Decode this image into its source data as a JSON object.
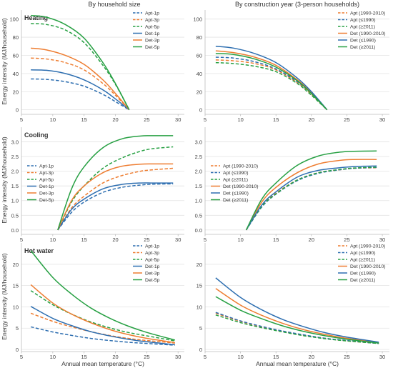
{
  "figure": {
    "col_titles": [
      "By household size",
      "By construction year (3-person households)"
    ],
    "ylabel": "Energy intensity (MJ/household)",
    "xlabel": "Annual mean temperature (°C)",
    "row_titles": [
      "Heating",
      "Cooling",
      "Hot water"
    ]
  },
  "colors": {
    "blue": "#2d6eb0",
    "orange": "#ee7d31",
    "green": "#27a043",
    "grid": "#e3e3e3",
    "axis": "#bdbdbd"
  },
  "chart_data": [
    {
      "type": "line",
      "title": "Heating",
      "column": "By household size",
      "xlim": [
        5,
        31
      ],
      "ylim": [
        -5,
        110
      ],
      "xticks": [
        5,
        10,
        15,
        20,
        25,
        30
      ],
      "yticks": [
        0,
        20,
        40,
        60,
        80,
        100
      ],
      "legend": "top-right",
      "series": [
        {
          "name": "Apt-1p",
          "color": "#2d6eb0",
          "dash": true,
          "x": [
            6.5,
            9,
            12,
            15,
            18,
            20,
            22.2
          ],
          "y": [
            34,
            33.5,
            31,
            26,
            17,
            9,
            0
          ]
        },
        {
          "name": "Apt-3p",
          "color": "#ee7d31",
          "dash": true,
          "x": [
            6.5,
            9,
            12,
            15,
            18,
            20,
            22.2
          ],
          "y": [
            57,
            56,
            52,
            44,
            29,
            16,
            0
          ]
        },
        {
          "name": "Apt-5p",
          "color": "#27a043",
          "dash": true,
          "x": [
            6.5,
            9,
            12,
            15,
            18,
            20,
            22.2
          ],
          "y": [
            95,
            94,
            88,
            74,
            49,
            28,
            0
          ]
        },
        {
          "name": "Det-1p",
          "color": "#2d6eb0",
          "dash": false,
          "x": [
            6.5,
            9,
            12,
            15,
            18,
            20,
            22.2
          ],
          "y": [
            44,
            43.5,
            40,
            33,
            22,
            12,
            0
          ]
        },
        {
          "name": "Det-3p",
          "color": "#ee7d31",
          "dash": false,
          "x": [
            6.5,
            9,
            12,
            15,
            18,
            20,
            22.2
          ],
          "y": [
            68,
            66,
            60,
            50,
            33,
            18,
            0
          ]
        },
        {
          "name": "Det-5p",
          "color": "#27a043",
          "dash": false,
          "x": [
            6.5,
            9,
            12,
            15,
            18,
            20,
            22.2
          ],
          "y": [
            104,
            102,
            94,
            79,
            52,
            29,
            0
          ]
        }
      ]
    },
    {
      "type": "line",
      "column": "By construction year (3-person households)",
      "xlim": [
        5,
        31
      ],
      "ylim": [
        -5,
        110
      ],
      "xticks": [
        5,
        10,
        15,
        20,
        25,
        30
      ],
      "yticks": [
        0,
        20,
        40,
        60,
        80,
        100
      ],
      "legend": "top-right",
      "series": [
        {
          "name": "Apt (1990-2010)",
          "color": "#ee7d31",
          "dash": true,
          "x": [
            6.5,
            9,
            12,
            15,
            18,
            20,
            22.2
          ],
          "y": [
            55,
            54,
            51,
            44,
            30,
            17,
            0
          ]
        },
        {
          "name": "Apt (≤1990)",
          "color": "#2d6eb0",
          "dash": true,
          "x": [
            6.5,
            9,
            12,
            15,
            18,
            20,
            22.2
          ],
          "y": [
            58,
            57,
            53,
            45,
            31,
            18,
            0
          ]
        },
        {
          "name": "Apt (≥2011)",
          "color": "#27a043",
          "dash": true,
          "x": [
            6.5,
            9,
            12,
            15,
            18,
            20,
            22.2
          ],
          "y": [
            52,
            51,
            48,
            42,
            29,
            16,
            0
          ]
        },
        {
          "name": "Det (1990-2010)",
          "color": "#ee7d31",
          "dash": false,
          "x": [
            6.5,
            9,
            12,
            15,
            18,
            20,
            22.2
          ],
          "y": [
            65,
            63,
            58,
            49,
            33,
            19,
            0
          ]
        },
        {
          "name": "Det (≤1990)",
          "color": "#2d6eb0",
          "dash": false,
          "x": [
            6.5,
            9,
            12,
            15,
            18,
            20,
            22.2
          ],
          "y": [
            70,
            68,
            62,
            52,
            35,
            20,
            0
          ]
        },
        {
          "name": "Det (≥2011)",
          "color": "#27a043",
          "dash": false,
          "x": [
            6.5,
            9,
            12,
            15,
            18,
            20,
            22.2
          ],
          "y": [
            62,
            61,
            56,
            47,
            32,
            18,
            0
          ]
        }
      ]
    },
    {
      "type": "line",
      "title": "Cooling",
      "column": "By household size",
      "xlim": [
        5,
        31
      ],
      "ylim": [
        -0.15,
        3.5
      ],
      "xticks": [
        5,
        10,
        15,
        20,
        25,
        30
      ],
      "yticks": [
        0.0,
        0.5,
        1.0,
        1.5,
        2.0,
        2.5,
        3.0
      ],
      "legend": "left",
      "series": [
        {
          "name": "Apt-1p",
          "color": "#2d6eb0",
          "dash": true,
          "x": [
            10.8,
            13,
            15,
            18,
            21,
            24,
            26,
            29.2
          ],
          "y": [
            0,
            0.6,
            0.95,
            1.28,
            1.45,
            1.53,
            1.56,
            1.57
          ]
        },
        {
          "name": "Apt-3p",
          "color": "#ee7d31",
          "dash": true,
          "x": [
            10.8,
            13,
            15,
            18,
            21,
            24,
            26,
            29.2
          ],
          "y": [
            0,
            0.75,
            1.15,
            1.6,
            1.85,
            2.0,
            2.05,
            2.1
          ]
        },
        {
          "name": "Apt-5p",
          "color": "#27a043",
          "dash": true,
          "x": [
            10.8,
            13,
            15,
            18,
            21,
            24,
            26,
            29.2
          ],
          "y": [
            0,
            0.95,
            1.5,
            2.1,
            2.45,
            2.68,
            2.77,
            2.83
          ]
        },
        {
          "name": "Det-1p",
          "color": "#2d6eb0",
          "dash": false,
          "x": [
            10.8,
            13,
            15,
            18,
            21,
            24,
            26,
            29.2
          ],
          "y": [
            0,
            0.7,
            1.05,
            1.4,
            1.55,
            1.6,
            1.6,
            1.6
          ]
        },
        {
          "name": "Det-3p",
          "color": "#ee7d31",
          "dash": false,
          "x": [
            10.8,
            13,
            15,
            18,
            21,
            24,
            26,
            29.2
          ],
          "y": [
            0,
            1.0,
            1.5,
            1.95,
            2.17,
            2.24,
            2.25,
            2.25
          ]
        },
        {
          "name": "Det-5p",
          "color": "#27a043",
          "dash": false,
          "x": [
            10.8,
            13,
            15,
            18,
            21,
            24,
            26,
            29.2
          ],
          "y": [
            0,
            1.4,
            2.15,
            2.8,
            3.1,
            3.2,
            3.21,
            3.21
          ]
        }
      ]
    },
    {
      "type": "line",
      "column": "By construction year (3-person households)",
      "xlim": [
        5,
        31
      ],
      "ylim": [
        -0.15,
        3.5
      ],
      "xticks": [
        5,
        10,
        15,
        20,
        25,
        30
      ],
      "yticks": [
        0.0,
        0.5,
        1.0,
        1.5,
        2.0,
        2.5,
        3.0
      ],
      "legend": "left",
      "series": [
        {
          "name": "Apt (1990-2010)",
          "color": "#ee7d31",
          "dash": true,
          "x": [
            10.8,
            13,
            15,
            18,
            21,
            24,
            26,
            29.2
          ],
          "y": [
            0,
            0.8,
            1.25,
            1.7,
            1.95,
            2.05,
            2.1,
            2.12
          ]
        },
        {
          "name": "Apt (≤1990)",
          "color": "#2d6eb0",
          "dash": true,
          "x": [
            10.8,
            13,
            15,
            18,
            21,
            24,
            26,
            29.2
          ],
          "y": [
            0,
            0.78,
            1.22,
            1.68,
            1.93,
            2.05,
            2.1,
            2.13
          ]
        },
        {
          "name": "Apt (≥2011)",
          "color": "#27a043",
          "dash": true,
          "x": [
            10.8,
            13,
            15,
            18,
            21,
            24,
            26,
            29.2
          ],
          "y": [
            0,
            0.8,
            1.23,
            1.7,
            1.95,
            2.06,
            2.11,
            2.14
          ]
        },
        {
          "name": "Det (1990-2010)",
          "color": "#ee7d31",
          "dash": false,
          "x": [
            10.8,
            13,
            15,
            18,
            21,
            24,
            26,
            29.2
          ],
          "y": [
            0,
            0.95,
            1.45,
            1.95,
            2.25,
            2.37,
            2.4,
            2.4
          ]
        },
        {
          "name": "Det (≤1990)",
          "color": "#2d6eb0",
          "dash": false,
          "x": [
            10.8,
            13,
            15,
            18,
            21,
            24,
            26,
            29.2
          ],
          "y": [
            0,
            0.85,
            1.3,
            1.8,
            2.03,
            2.12,
            2.16,
            2.18
          ]
        },
        {
          "name": "Det (≥2011)",
          "color": "#27a043",
          "dash": false,
          "x": [
            10.8,
            13,
            15,
            18,
            21,
            24,
            26,
            29.2
          ],
          "y": [
            0,
            1.05,
            1.6,
            2.2,
            2.52,
            2.65,
            2.68,
            2.69
          ]
        }
      ]
    },
    {
      "type": "line",
      "title": "Hot water",
      "column": "By household size",
      "xlim": [
        5,
        31
      ],
      "ylim": [
        -0.5,
        25
      ],
      "xticks": [
        5,
        10,
        15,
        20,
        25,
        30
      ],
      "yticks": [
        0,
        5,
        10,
        15,
        20
      ],
      "xlabel": "Annual mean temperature (°C)",
      "legend": "top-right",
      "series": [
        {
          "name": "Apt-1p",
          "color": "#2d6eb0",
          "dash": true,
          "x": [
            6.5,
            10,
            13,
            16,
            19,
            22,
            25,
            29.5
          ],
          "y": [
            5.3,
            4.1,
            3.3,
            2.6,
            2.1,
            1.7,
            1.4,
            1.0
          ]
        },
        {
          "name": "Apt-3p",
          "color": "#ee7d31",
          "dash": true,
          "x": [
            6.5,
            10,
            13,
            16,
            19,
            22,
            25,
            29.5
          ],
          "y": [
            8.5,
            6.6,
            5.3,
            4.2,
            3.3,
            2.6,
            2.1,
            1.5
          ]
        },
        {
          "name": "Apt-5p",
          "color": "#27a043",
          "dash": true,
          "x": [
            6.5,
            10,
            13,
            16,
            19,
            22,
            25,
            29.5
          ],
          "y": [
            13.8,
            10.5,
            8.3,
            6.5,
            5.1,
            4.0,
            3.2,
            2.0
          ]
        },
        {
          "name": "Det-1p",
          "color": "#2d6eb0",
          "dash": false,
          "x": [
            6.5,
            10,
            13,
            16,
            19,
            22,
            25,
            29.5
          ],
          "y": [
            10.1,
            7.3,
            5.6,
            4.2,
            3.2,
            2.4,
            1.8,
            1.1
          ]
        },
        {
          "name": "Det-3p",
          "color": "#ee7d31",
          "dash": false,
          "x": [
            6.5,
            10,
            13,
            16,
            19,
            22,
            25,
            29.5
          ],
          "y": [
            15.2,
            10.9,
            8.3,
            6.3,
            4.7,
            3.5,
            2.6,
            1.6
          ]
        },
        {
          "name": "Det-5p",
          "color": "#27a043",
          "dash": false,
          "x": [
            6.5,
            10,
            13,
            16,
            19,
            22,
            25,
            29.5
          ],
          "y": [
            23.2,
            16.9,
            13.0,
            9.8,
            7.4,
            5.5,
            4.0,
            2.2
          ]
        }
      ]
    },
    {
      "type": "line",
      "column": "By construction year (3-person households)",
      "xlim": [
        5,
        31
      ],
      "ylim": [
        -0.5,
        25
      ],
      "xticks": [
        5,
        10,
        15,
        20,
        25,
        30
      ],
      "yticks": [
        0,
        5,
        10,
        15,
        20
      ],
      "xlabel": "Annual mean temperature (°C)",
      "legend": "top-right",
      "series": [
        {
          "name": "Apt (1990-2010)",
          "color": "#ee7d31",
          "dash": true,
          "x": [
            6.5,
            10,
            13,
            16,
            19,
            22,
            25,
            29.5
          ],
          "y": [
            8.5,
            6.6,
            5.3,
            4.2,
            3.3,
            2.6,
            2.0,
            1.4
          ]
        },
        {
          "name": "Apt (≤1990)",
          "color": "#2d6eb0",
          "dash": true,
          "x": [
            6.5,
            10,
            13,
            16,
            19,
            22,
            25,
            29.5
          ],
          "y": [
            8.7,
            6.7,
            5.4,
            4.3,
            3.4,
            2.6,
            2.1,
            1.4
          ]
        },
        {
          "name": "Apt (≥2011)",
          "color": "#27a043",
          "dash": true,
          "x": [
            6.5,
            10,
            13,
            16,
            19,
            22,
            25,
            29.5
          ],
          "y": [
            8.1,
            6.3,
            5.1,
            4.1,
            3.2,
            2.5,
            2.0,
            1.4
          ]
        },
        {
          "name": "Det (1990-2010)",
          "color": "#ee7d31",
          "dash": false,
          "x": [
            6.5,
            10,
            13,
            16,
            19,
            22,
            25,
            29.5
          ],
          "y": [
            14.3,
            10.4,
            8.0,
            6.1,
            4.6,
            3.5,
            2.6,
            1.6
          ]
        },
        {
          "name": "Det (≤1990)",
          "color": "#2d6eb0",
          "dash": false,
          "x": [
            6.5,
            10,
            13,
            16,
            19,
            22,
            25,
            29.5
          ],
          "y": [
            16.8,
            12.2,
            9.3,
            7.0,
            5.3,
            3.9,
            2.9,
            1.7
          ]
        },
        {
          "name": "Det (≥2011)",
          "color": "#27a043",
          "dash": false,
          "x": [
            6.5,
            10,
            13,
            16,
            19,
            22,
            25,
            29.5
          ],
          "y": [
            12.4,
            9.2,
            7.2,
            5.5,
            4.2,
            3.2,
            2.4,
            1.5
          ]
        }
      ]
    }
  ]
}
